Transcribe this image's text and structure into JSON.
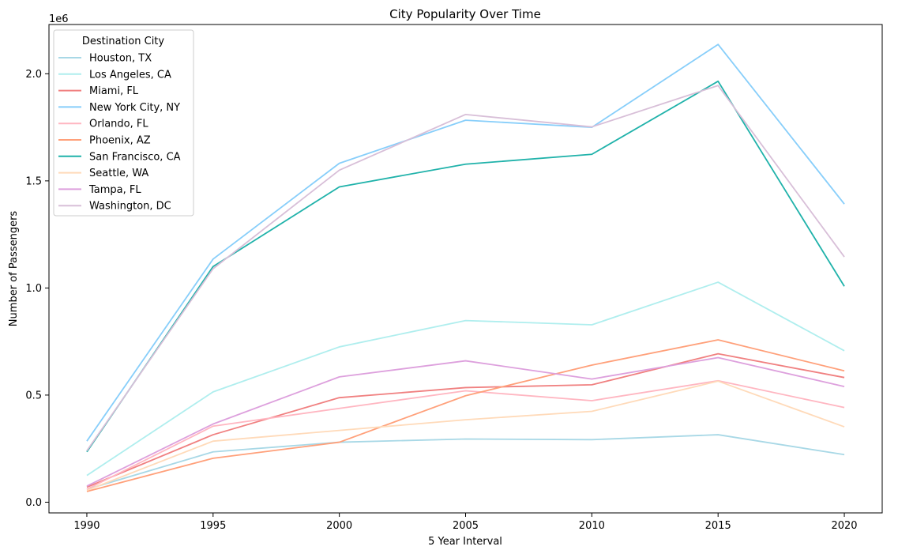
{
  "chart_data": {
    "type": "line",
    "title": "City Popularity Over Time",
    "xlabel": "5 Year Interval",
    "ylabel": "Number of Passengers",
    "y_offset_label": "1e6",
    "x": [
      1990,
      1995,
      2000,
      2005,
      2010,
      2015,
      2020
    ],
    "xticks": [
      "1990",
      "1995",
      "2000",
      "2005",
      "2010",
      "2015",
      "2020"
    ],
    "yticks": [
      0.0,
      0.5,
      1.0,
      1.5,
      2.0
    ],
    "ytick_labels": [
      "0.0",
      "0.5",
      "1.0",
      "1.5",
      "2.0"
    ],
    "ylim": [
      -0.05,
      2.23
    ],
    "xlim": [
      1988.5,
      2021.5
    ],
    "grid": false,
    "legend_title": "Destination City",
    "legend_position": "top-left",
    "series": [
      {
        "name": "Houston, TX",
        "color": "#a8d8e6",
        "values": [
          0.06,
          0.235,
          0.28,
          0.295,
          0.292,
          0.315,
          0.222
        ]
      },
      {
        "name": "Los Angeles, CA",
        "color": "#afeeee",
        "values": [
          0.125,
          0.515,
          0.725,
          0.848,
          0.828,
          1.027,
          0.707
        ]
      },
      {
        "name": "Miami, FL",
        "color": "#f08080",
        "values": [
          0.07,
          0.315,
          0.488,
          0.535,
          0.548,
          0.693,
          0.582
        ]
      },
      {
        "name": "New York City, NY",
        "color": "#87cefa",
        "values": [
          0.285,
          1.135,
          1.582,
          1.783,
          1.75,
          2.137,
          1.392
        ]
      },
      {
        "name": "Orlando, FL",
        "color": "#ffb6c1",
        "values": [
          0.06,
          0.355,
          0.438,
          0.52,
          0.474,
          0.567,
          0.442
        ]
      },
      {
        "name": "Phoenix, AZ",
        "color": "#ffa07a",
        "values": [
          0.05,
          0.205,
          0.28,
          0.497,
          0.64,
          0.758,
          0.613
        ]
      },
      {
        "name": "San Francisco, CA",
        "color": "#20b2aa",
        "values": [
          0.235,
          1.1,
          1.472,
          1.578,
          1.624,
          1.965,
          1.008
        ]
      },
      {
        "name": "Seattle, WA",
        "color": "#ffdab9",
        "values": [
          0.055,
          0.285,
          0.335,
          0.385,
          0.424,
          0.565,
          0.352
        ]
      },
      {
        "name": "Tampa, FL",
        "color": "#dda0dd",
        "values": [
          0.075,
          0.365,
          0.585,
          0.66,
          0.575,
          0.675,
          0.54
        ]
      },
      {
        "name": "Washington, DC",
        "color": "#d8bfd8",
        "values": [
          0.24,
          1.09,
          1.55,
          1.81,
          1.752,
          1.945,
          1.145
        ]
      }
    ]
  }
}
